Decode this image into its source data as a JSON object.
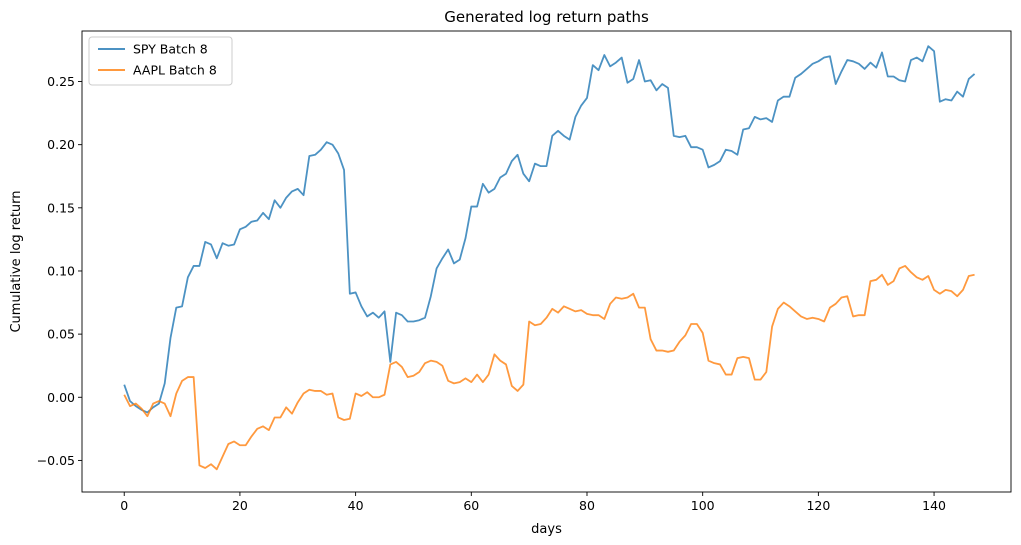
{
  "chart_data": {
    "type": "line",
    "title": "Generated log return paths",
    "xlabel": "days",
    "ylabel": "Cumulative log return",
    "xlim": [
      -7.3,
      153.3
    ],
    "ylim": [
      -0.075,
      0.29
    ],
    "xticks": [
      0,
      20,
      40,
      60,
      80,
      100,
      120,
      140
    ],
    "yticks": [
      -0.05,
      0.0,
      0.05,
      0.1,
      0.15,
      0.2,
      0.25
    ],
    "ytick_labels": [
      "−0.05",
      "0.00",
      "0.05",
      "0.10",
      "0.15",
      "0.20",
      "0.25"
    ],
    "grid": false,
    "legend_position": "top-left",
    "series": [
      {
        "name": "SPY Batch 8",
        "color": "#1f77b4",
        "values": [
          0.01,
          -0.003,
          -0.007,
          -0.01,
          -0.012,
          -0.008,
          -0.005,
          0.011,
          0.047,
          0.071,
          0.072,
          0.095,
          0.104,
          0.104,
          0.123,
          0.121,
          0.11,
          0.122,
          0.12,
          0.121,
          0.133,
          0.135,
          0.139,
          0.14,
          0.146,
          0.141,
          0.156,
          0.15,
          0.158,
          0.163,
          0.165,
          0.16,
          0.191,
          0.192,
          0.196,
          0.202,
          0.2,
          0.193,
          0.18,
          0.082,
          0.083,
          0.072,
          0.064,
          0.067,
          0.063,
          0.068,
          0.028,
          0.067,
          0.065,
          0.06,
          0.06,
          0.061,
          0.063,
          0.08,
          0.102,
          0.11,
          0.117,
          0.106,
          0.109,
          0.126,
          0.151,
          0.151,
          0.169,
          0.162,
          0.165,
          0.174,
          0.177,
          0.187,
          0.192,
          0.177,
          0.171,
          0.185,
          0.183,
          0.183,
          0.207,
          0.211,
          0.207,
          0.204,
          0.222,
          0.231,
          0.237,
          0.263,
          0.259,
          0.271,
          0.262,
          0.265,
          0.269,
          0.249,
          0.252,
          0.267,
          0.25,
          0.251,
          0.243,
          0.248,
          0.245,
          0.207,
          0.206,
          0.207,
          0.198,
          0.198,
          0.196,
          0.182,
          0.184,
          0.187,
          0.196,
          0.195,
          0.192,
          0.212,
          0.213,
          0.222,
          0.22,
          0.221,
          0.218,
          0.235,
          0.238,
          0.238,
          0.253,
          0.256,
          0.26,
          0.264,
          0.266,
          0.269,
          0.27,
          0.248,
          0.258,
          0.267,
          0.266,
          0.264,
          0.26,
          0.265,
          0.261,
          0.273,
          0.254,
          0.254,
          0.251,
          0.25,
          0.267,
          0.269,
          0.266,
          0.278,
          0.274,
          0.234,
          0.236,
          0.235,
          0.242,
          0.238,
          0.252,
          0.256
        ]
      },
      {
        "name": "AAPL Batch 8",
        "color": "#ff7f0e",
        "values": [
          0.002,
          -0.007,
          -0.005,
          -0.009,
          -0.015,
          -0.005,
          -0.003,
          -0.005,
          -0.015,
          0.003,
          0.013,
          0.016,
          0.016,
          -0.054,
          -0.056,
          -0.053,
          -0.057,
          -0.047,
          -0.037,
          -0.035,
          -0.038,
          -0.038,
          -0.031,
          -0.025,
          -0.023,
          -0.026,
          -0.016,
          -0.016,
          -0.008,
          -0.013,
          -0.004,
          0.003,
          0.006,
          0.005,
          0.005,
          0.002,
          0.003,
          -0.016,
          -0.018,
          -0.017,
          0.003,
          0.001,
          0.004,
          0.0,
          0.0,
          0.002,
          0.026,
          0.028,
          0.024,
          0.016,
          0.017,
          0.02,
          0.027,
          0.029,
          0.028,
          0.025,
          0.013,
          0.011,
          0.012,
          0.015,
          0.012,
          0.018,
          0.012,
          0.018,
          0.034,
          0.029,
          0.026,
          0.009,
          0.005,
          0.01,
          0.06,
          0.057,
          0.058,
          0.063,
          0.07,
          0.067,
          0.072,
          0.07,
          0.068,
          0.069,
          0.066,
          0.065,
          0.065,
          0.062,
          0.074,
          0.079,
          0.078,
          0.079,
          0.082,
          0.071,
          0.071,
          0.046,
          0.037,
          0.037,
          0.036,
          0.037,
          0.044,
          0.049,
          0.058,
          0.058,
          0.051,
          0.029,
          0.027,
          0.026,
          0.018,
          0.018,
          0.031,
          0.032,
          0.031,
          0.014,
          0.014,
          0.02,
          0.056,
          0.07,
          0.075,
          0.072,
          0.068,
          0.064,
          0.062,
          0.063,
          0.062,
          0.06,
          0.071,
          0.074,
          0.079,
          0.08,
          0.064,
          0.065,
          0.065,
          0.092,
          0.093,
          0.097,
          0.089,
          0.092,
          0.102,
          0.104,
          0.099,
          0.095,
          0.093,
          0.096,
          0.085,
          0.082,
          0.085,
          0.084,
          0.08,
          0.085,
          0.096,
          0.097
        ]
      }
    ]
  }
}
